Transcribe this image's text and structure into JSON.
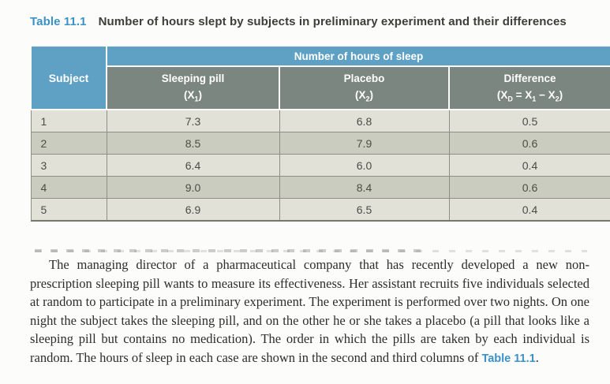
{
  "caption": {
    "label": "Table 11.1",
    "text": "Number of hours slept by subjects in preliminary experiment and their differences"
  },
  "table": {
    "corner_header": "Subject",
    "span_header": "Number of hours of sleep",
    "columns": [
      {
        "title": "Sleeping pill",
        "formula": [
          {
            "t": "(X"
          },
          {
            "s": "1"
          },
          {
            "t": ")"
          }
        ]
      },
      {
        "title": "Placebo",
        "formula": [
          {
            "t": "(X"
          },
          {
            "s": "2"
          },
          {
            "t": ")"
          }
        ]
      },
      {
        "title": "Difference",
        "formula": [
          {
            "t": "(X"
          },
          {
            "s": "D"
          },
          {
            "t": " = X"
          },
          {
            "s": "1"
          },
          {
            "t": " − X"
          },
          {
            "s": "2"
          },
          {
            "t": ")"
          }
        ]
      }
    ],
    "rows": [
      {
        "subject": "1",
        "sleeping_pill": "7.3",
        "placebo": "6.8",
        "difference": "0.5"
      },
      {
        "subject": "2",
        "sleeping_pill": "8.5",
        "placebo": "7.9",
        "difference": "0.6"
      },
      {
        "subject": "3",
        "sleeping_pill": "6.4",
        "placebo": "6.0",
        "difference": "0.4"
      },
      {
        "subject": "4",
        "sleeping_pill": "9.0",
        "placebo": "8.4",
        "difference": "0.6"
      },
      {
        "subject": "5",
        "sleeping_pill": "6.9",
        "placebo": "6.5",
        "difference": "0.4"
      }
    ]
  },
  "paragraph": {
    "text": "The managing director of a pharmaceutical company that has recently developed a new non-prescription sleeping pill wants to measure its effectiveness. Her assistant recruits five individuals selected at random to participate in a preliminary experiment. The experiment is performed over two nights. On one night the subject takes the sleeping pill, and on the other he or she takes a placebo (a pill that looks like a sleeping pill but contains no medication). The order in which the pills are taken by each individual is random. The hours of sleep in each case are shown in the second and third columns of ",
    "link_label": "Table 11.1",
    "suffix": "."
  },
  "colors": {
    "header_blue": "#5fa0c5",
    "header_gray": "#7c8681",
    "accent_blue": "#3b92c7",
    "row_light": "#e1e1d7",
    "row_dark": "#cbccc0"
  }
}
